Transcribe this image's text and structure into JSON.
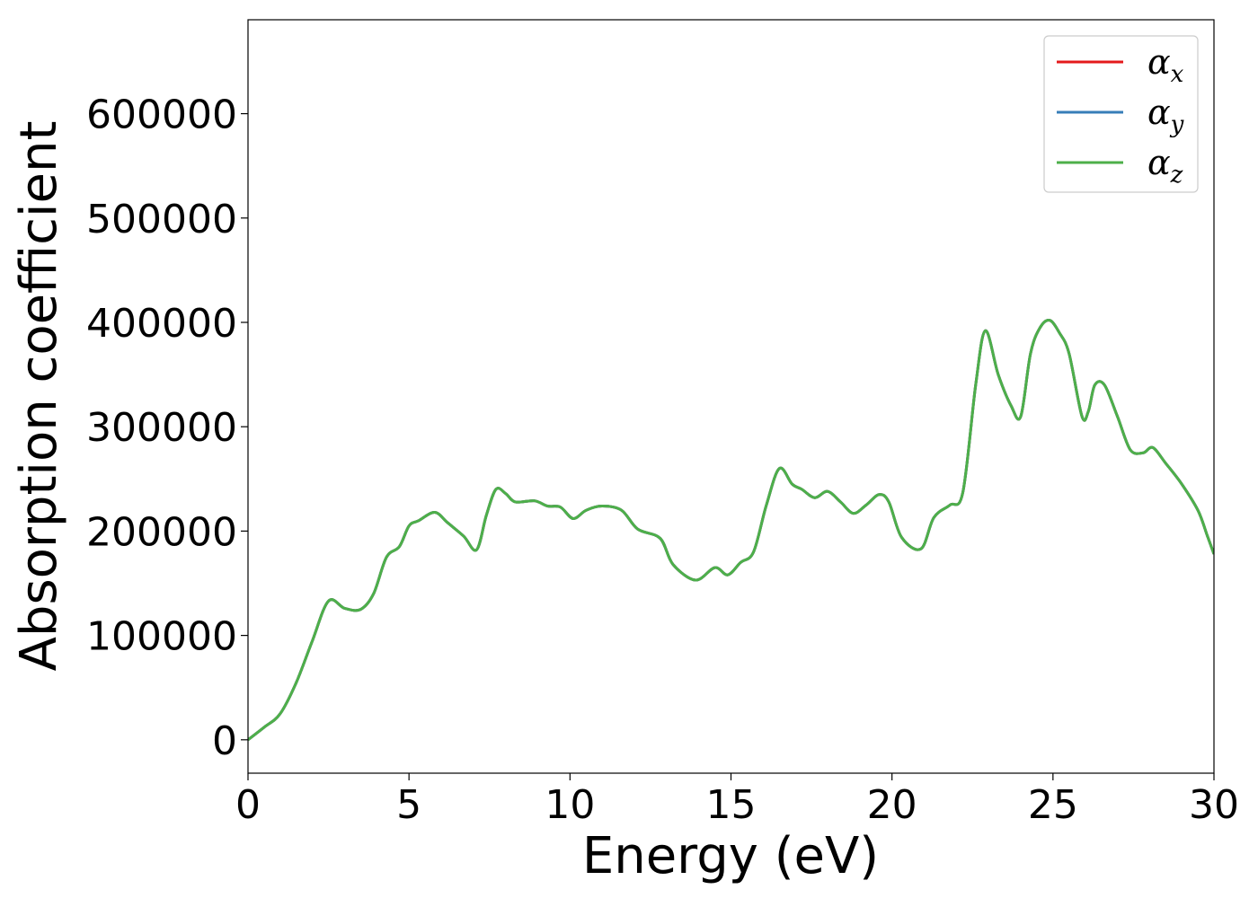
{
  "chart_data": {
    "type": "line",
    "title": "",
    "xlabel": "Energy (eV)",
    "ylabel": "Absorption coefficient",
    "xlim": [
      0,
      30
    ],
    "ylim": [
      -32000,
      690000
    ],
    "x_ticks": [
      0,
      5,
      10,
      15,
      20,
      25,
      30
    ],
    "y_ticks": [
      0,
      100000,
      200000,
      300000,
      400000,
      500000,
      600000
    ],
    "grid": false,
    "legend_position": "top-right",
    "series": [
      {
        "name": "α",
        "subscript": "x",
        "color": "#e41a1c"
      },
      {
        "name": "α",
        "subscript": "y",
        "color": "#377eb8"
      },
      {
        "name": "α",
        "subscript": "z",
        "color": "#4daf4a"
      }
    ],
    "x": [
      0,
      0.5,
      1.0,
      1.5,
      2.0,
      2.5,
      3.0,
      3.5,
      3.9,
      4.3,
      4.7,
      5.0,
      5.3,
      5.8,
      6.2,
      6.7,
      7.1,
      7.4,
      7.7,
      8.0,
      8.3,
      8.9,
      9.3,
      9.7,
      10.1,
      10.5,
      11.0,
      11.6,
      12.1,
      12.8,
      13.2,
      13.9,
      14.5,
      14.9,
      15.3,
      15.7,
      16.1,
      16.5,
      16.9,
      17.2,
      17.6,
      18.0,
      18.4,
      18.8,
      19.2,
      19.6,
      19.9,
      20.3,
      20.9,
      21.3,
      21.8,
      22.2,
      22.6,
      22.9,
      23.3,
      23.7,
      24.0,
      24.3,
      24.6,
      24.9,
      25.2,
      25.5,
      25.9,
      26.1,
      26.3,
      26.6,
      27.0,
      27.4,
      27.8,
      28.1,
      28.5,
      29.0,
      29.5,
      29.8,
      30.0
    ],
    "values": [
      0,
      12000,
      25000,
      55000,
      95000,
      133000,
      126000,
      125000,
      140000,
      175000,
      185000,
      205000,
      210000,
      218000,
      208000,
      195000,
      182000,
      215000,
      240000,
      236000,
      228000,
      229000,
      224000,
      223000,
      212000,
      220000,
      224000,
      220000,
      202000,
      193000,
      168000,
      153000,
      165000,
      158000,
      170000,
      180000,
      225000,
      260000,
      245000,
      240000,
      232000,
      238000,
      228000,
      217000,
      225000,
      235000,
      228000,
      194000,
      183000,
      213000,
      225000,
      237000,
      340000,
      392000,
      350000,
      320000,
      310000,
      370000,
      395000,
      402000,
      390000,
      370000,
      310000,
      315000,
      340000,
      340000,
      310000,
      278000,
      275000,
      280000,
      265000,
      245000,
      220000,
      195000,
      178000
    ]
  }
}
